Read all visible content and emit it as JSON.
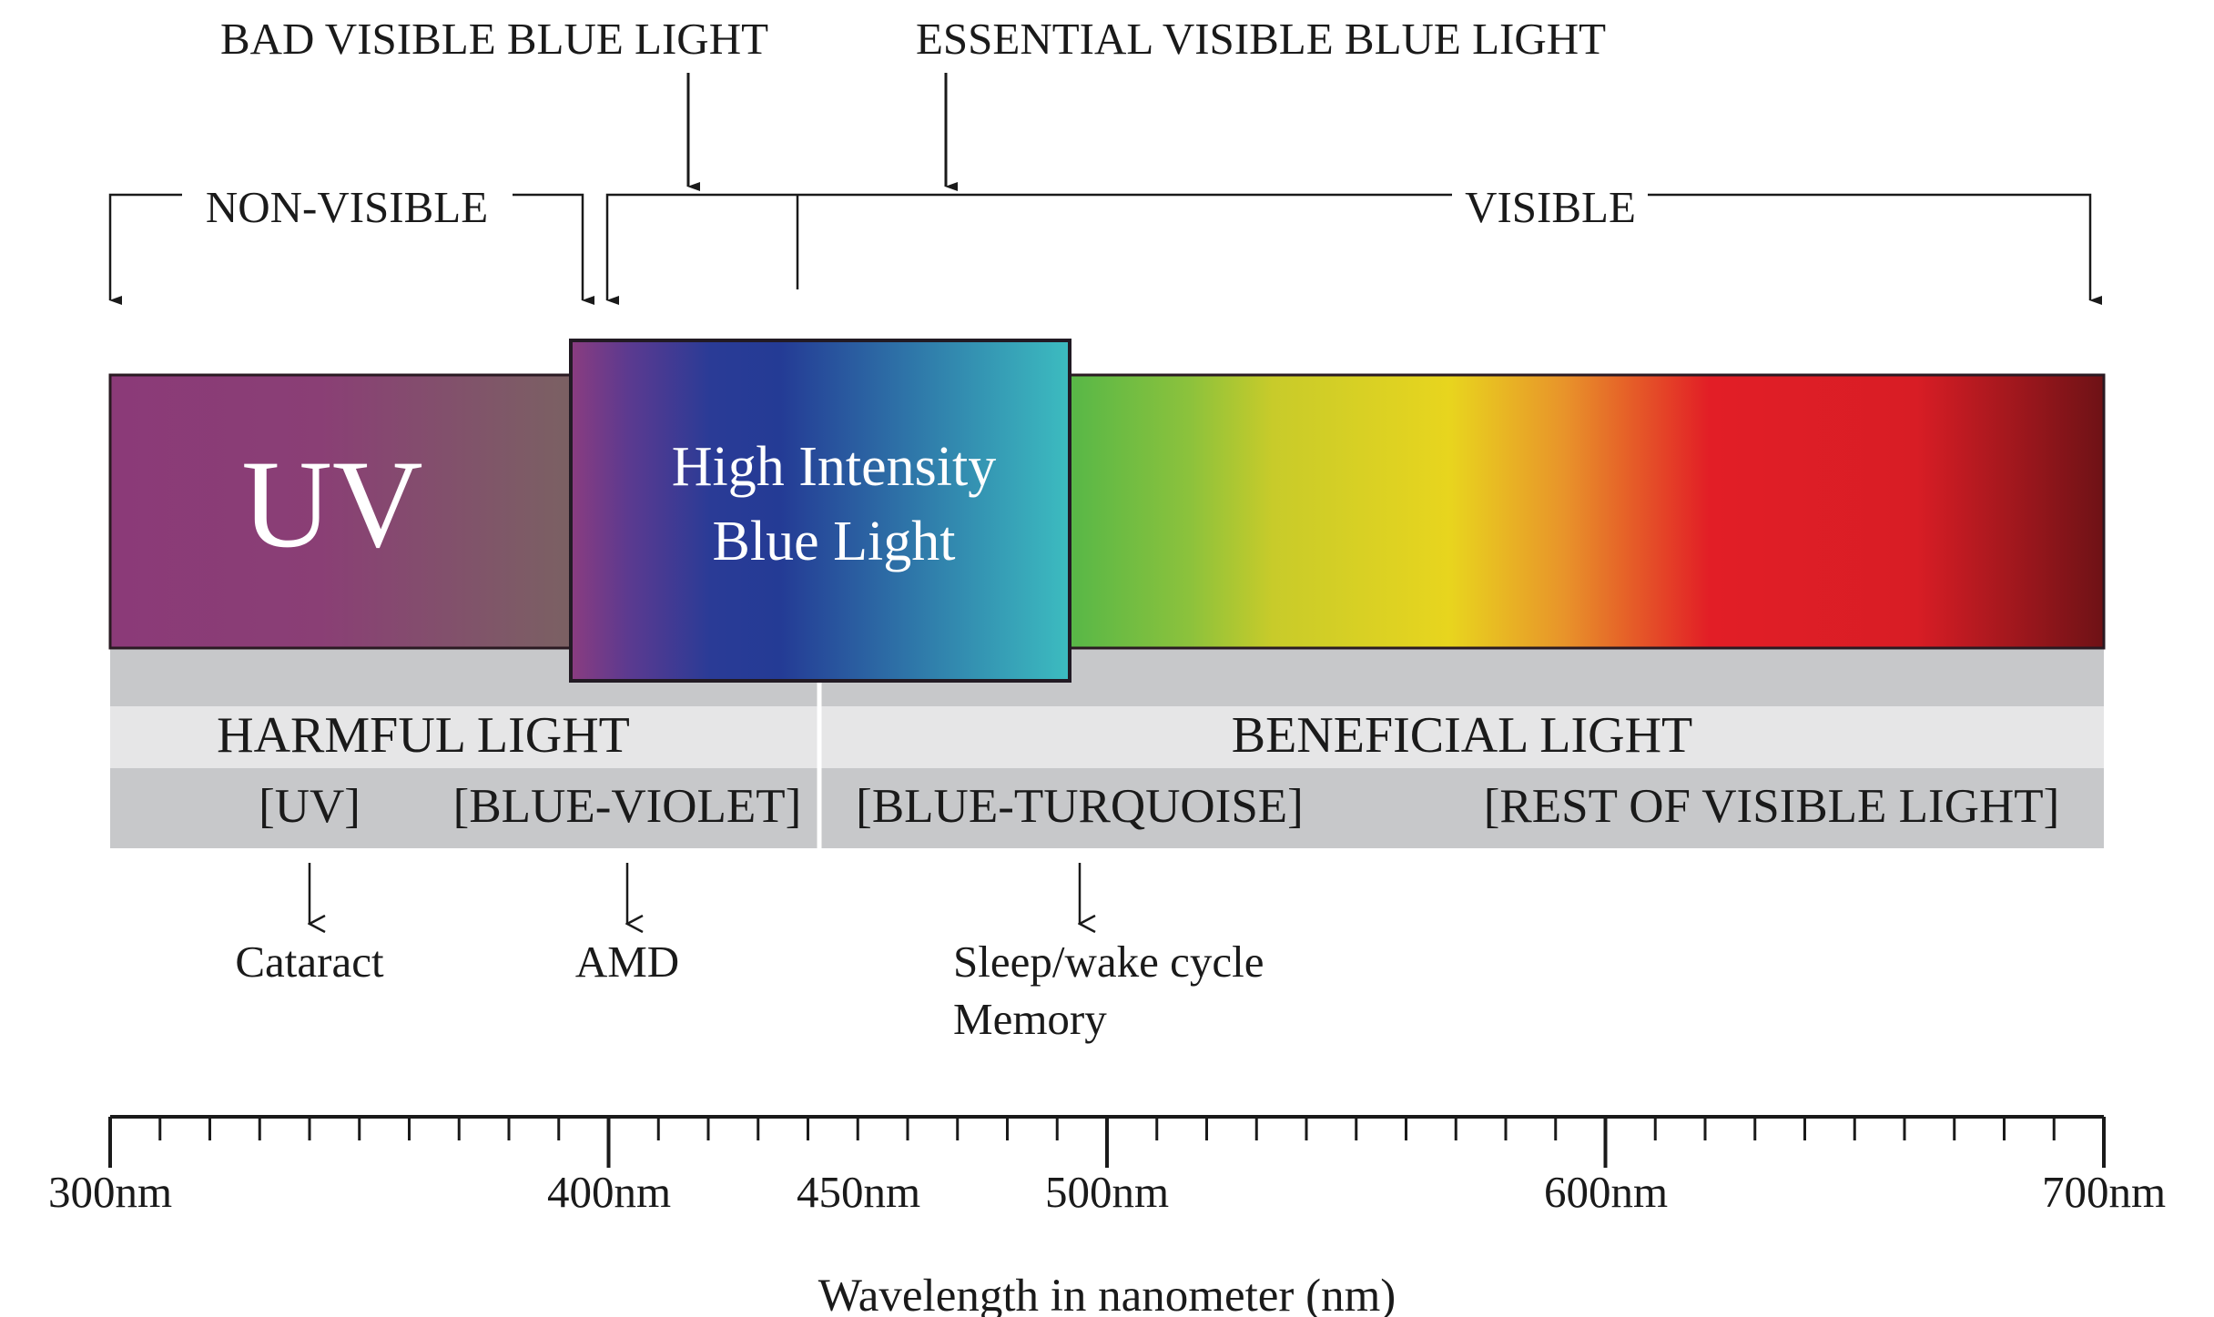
{
  "top_labels": {
    "bad_blue": "BAD VISIBLE BLUE LIGHT",
    "essential_blue": "ESSENTIAL VISIBLE BLUE LIGHT",
    "non_visible": "NON-VISIBLE",
    "visible": "VISIBLE"
  },
  "spectrum": {
    "uv_label": "UV",
    "blue_label_line1": "High Intensity",
    "blue_label_line2": "Blue Light",
    "colors": {
      "uv_start": "#8b3a78",
      "uv_end": "#7a6262",
      "blue_violet": "#8a3c80",
      "blue_deep": "#243b95",
      "blue_turquoise": "#3cbcc0",
      "green": "#55b748",
      "yellow": "#e8d51e",
      "orange": "#e8942a",
      "red": "#e21e26",
      "dark_red": "#6e1216"
    }
  },
  "categories": {
    "harmful": "HARMFUL LIGHT",
    "beneficial": "BENEFICIAL LIGHT",
    "uv": "[UV]",
    "blue_violet": "[BLUE-VIOLET]",
    "blue_turquoise": "[BLUE-TURQUOISE]",
    "rest": "[REST OF VISIBLE LIGHT]"
  },
  "effects": {
    "cataract": "Cataract",
    "amd": "AMD",
    "sleep": "Sleep/wake cycle",
    "memory": "Memory"
  },
  "axis": {
    "min_nm": 300,
    "max_nm": 700,
    "minor_step_nm": 10,
    "major_ticks_nm": [
      300,
      400,
      500,
      600,
      700
    ],
    "tick_labels": [
      "300nm",
      "400nm",
      "450nm",
      "500nm",
      "600nm",
      "700nm"
    ],
    "title": "Wavelength in nanometer (nm)"
  }
}
